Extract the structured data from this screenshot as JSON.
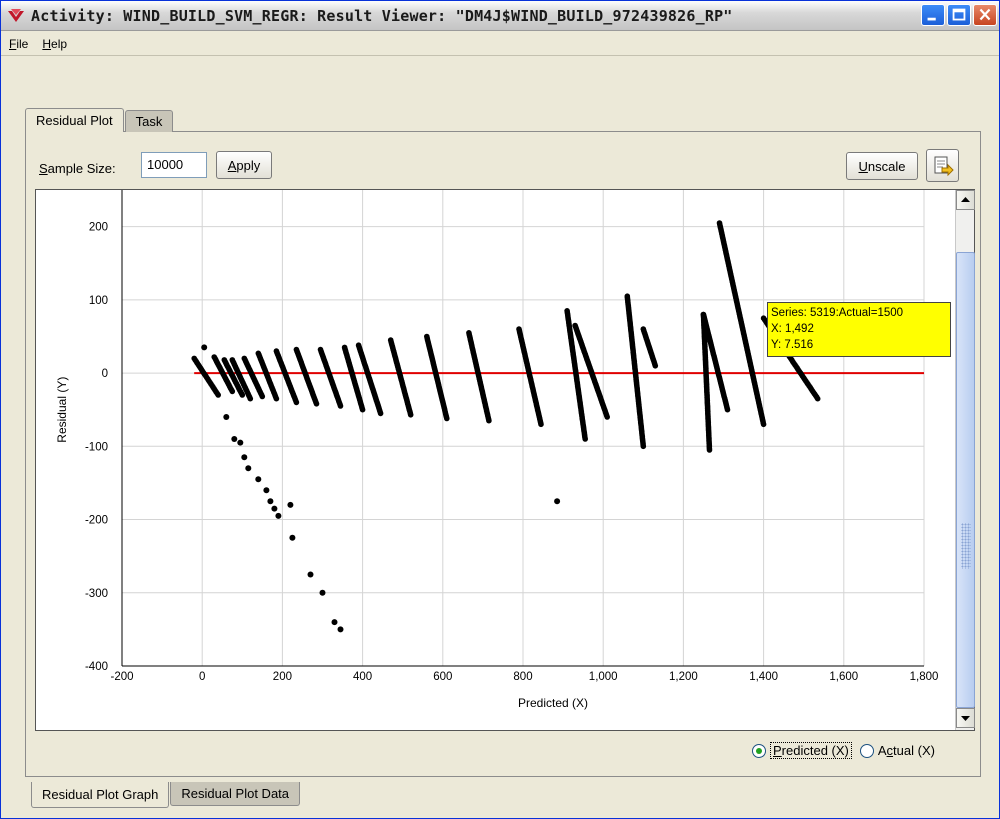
{
  "window": {
    "title": "Activity: WIND_BUILD_SVM_REGR: Result Viewer: \"DM4J$WIND_BUILD_972439826_RP\"",
    "icon": "oracle-dm-icon"
  },
  "menu": [
    {
      "label": "File",
      "mnemonic": "F",
      "rest": "ile"
    },
    {
      "label": "Help",
      "mnemonic": "H",
      "rest": "elp"
    }
  ],
  "tabs": [
    {
      "label": "Residual Plot",
      "active": true
    },
    {
      "label": "Task",
      "active": false
    }
  ],
  "toolbar": {
    "sample_size_label_m": "S",
    "sample_size_label_rest": "ample Size:",
    "sample_size_value": "10000",
    "apply_m": "A",
    "apply_rest": "pply",
    "unscale_m": "U",
    "unscale_rest": "nscale",
    "export_icon": "export-icon"
  },
  "tooltip": {
    "line1": "Series: 5319:Actual=1500",
    "line2": "X: 1,492",
    "line3": "Y: 7.516"
  },
  "radio": {
    "predicted_m": "P",
    "predicted_rest": "redicted (X)",
    "actual_a": "A",
    "actual_m": "c",
    "actual_rest": "tual (X)",
    "selected": "predicted"
  },
  "bottom_tabs": [
    {
      "label": "Residual Plot Graph",
      "active": true
    },
    {
      "label": "Residual Plot Data",
      "active": false
    }
  ],
  "colors": {
    "zero_line": "#e00000",
    "points": "#000000",
    "tooltip_bg": "#ffff00"
  },
  "chart_data": {
    "type": "scatter",
    "xlabel": "Predicted (X)",
    "ylabel": "Residual (Y)",
    "xlim": [
      -200,
      1800
    ],
    "ylim": [
      -400,
      250
    ],
    "xticks": [
      -200,
      0,
      200,
      400,
      600,
      800,
      1000,
      1200,
      1400,
      1600,
      1800
    ],
    "xtick_labels": [
      "-200",
      "0",
      "200",
      "400",
      "600",
      "800",
      "1,000",
      "1,200",
      "1,400",
      "1,600",
      "1,800"
    ],
    "yticks": [
      -400,
      -300,
      -200,
      -100,
      0,
      100,
      200
    ],
    "ytick_labels": [
      "-400",
      "-300",
      "-200",
      "-100",
      "0",
      "100",
      "200"
    ],
    "grid": true,
    "reference_line_y": 0,
    "bands": [
      {
        "x1": -20,
        "y1": 20,
        "x2": 40,
        "y2": -30
      },
      {
        "x1": 30,
        "y1": 22,
        "x2": 75,
        "y2": -25
      },
      {
        "x1": 55,
        "y1": 18,
        "x2": 100,
        "y2": -30
      },
      {
        "x1": 75,
        "y1": 18,
        "x2": 120,
        "y2": -35
      },
      {
        "x1": 105,
        "y1": 20,
        "x2": 150,
        "y2": -32
      },
      {
        "x1": 140,
        "y1": 27,
        "x2": 185,
        "y2": -35
      },
      {
        "x1": 185,
        "y1": 30,
        "x2": 235,
        "y2": -40
      },
      {
        "x1": 235,
        "y1": 32,
        "x2": 285,
        "y2": -42
      },
      {
        "x1": 295,
        "y1": 32,
        "x2": 345,
        "y2": -45
      },
      {
        "x1": 355,
        "y1": 35,
        "x2": 400,
        "y2": -50
      },
      {
        "x1": 390,
        "y1": 38,
        "x2": 445,
        "y2": -55
      },
      {
        "x1": 470,
        "y1": 45,
        "x2": 520,
        "y2": -57
      },
      {
        "x1": 560,
        "y1": 50,
        "x2": 610,
        "y2": -62
      },
      {
        "x1": 665,
        "y1": 55,
        "x2": 715,
        "y2": -65
      },
      {
        "x1": 790,
        "y1": 60,
        "x2": 845,
        "y2": -70
      },
      {
        "x1": 910,
        "y1": 85,
        "x2": 955,
        "y2": -90
      },
      {
        "x1": 930,
        "y1": 65,
        "x2": 1010,
        "y2": -60
      },
      {
        "x1": 1060,
        "y1": 105,
        "x2": 1100,
        "y2": -100
      },
      {
        "x1": 1100,
        "y1": 60,
        "x2": 1130,
        "y2": 10
      },
      {
        "x1": 1250,
        "y1": 80,
        "x2": 1265,
        "y2": -105
      },
      {
        "x1": 1250,
        "y1": 80,
        "x2": 1310,
        "y2": -50
      },
      {
        "x1": 1290,
        "y1": 205,
        "x2": 1400,
        "y2": -70
      },
      {
        "x1": 1400,
        "y1": 75,
        "x2": 1535,
        "y2": -35
      }
    ],
    "tail_points": [
      [
        5,
        35
      ],
      [
        60,
        -60
      ],
      [
        80,
        -90
      ],
      [
        95,
        -95
      ],
      [
        105,
        -115
      ],
      [
        115,
        -130
      ],
      [
        140,
        -145
      ],
      [
        160,
        -160
      ],
      [
        170,
        -175
      ],
      [
        180,
        -185
      ],
      [
        190,
        -195
      ],
      [
        220,
        -180
      ],
      [
        225,
        -225
      ],
      [
        270,
        -275
      ],
      [
        300,
        -300
      ],
      [
        330,
        -340
      ],
      [
        345,
        -350
      ],
      [
        885,
        -175
      ]
    ]
  }
}
